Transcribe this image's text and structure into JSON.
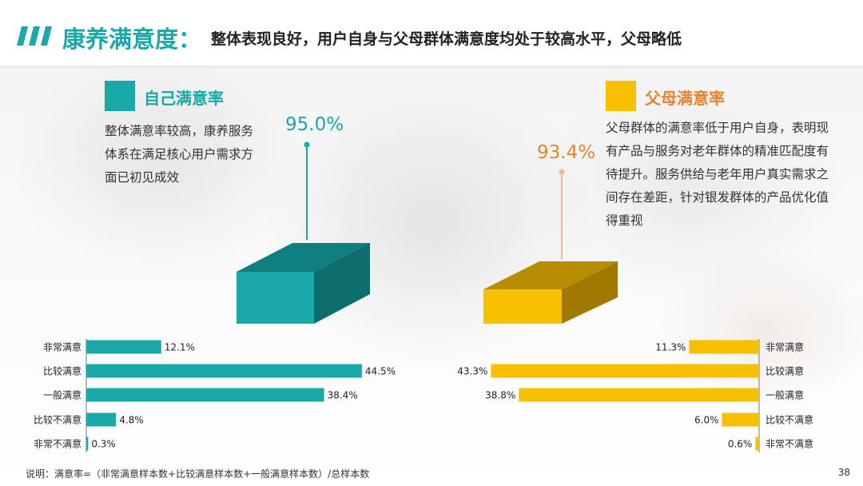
{
  "header": {
    "title": "康养满意度：",
    "subtitle": "整体表现良好，用户自身与父母群体满意度均处于较高水平，父母略低"
  },
  "colors": {
    "teal": "#1aa8a8",
    "teal_dark": "#0e7d7d",
    "yellow": "#f7c000",
    "yellow_dark": "#c59400",
    "orange_text": "#e8832e"
  },
  "left_panel": {
    "legend": "自己满意率",
    "overall_pct": "95.0%",
    "description": [
      "整体满意率较高，康养服务",
      "体系在满足核心用户需求方",
      "面已初见成效"
    ]
  },
  "right_panel": {
    "legend": "父母满意率",
    "overall_pct": "93.4%",
    "description": [
      "父母群体的满意率低于用户自身，表明现",
      "有产品与服务对老年群体的精准匹配度有",
      "待提升。服务供给与老年用户真实需求之",
      "间存在差距，针对银发群体的产品优化值",
      "得重视"
    ]
  },
  "chart_data": [
    {
      "type": "bar",
      "orientation": "horizontal",
      "series": [
        {
          "name": "自己满意率",
          "values": [
            12.1,
            44.5,
            38.4,
            4.8,
            0.3
          ]
        }
      ],
      "categories": [
        "非常满意",
        "比较满意",
        "一般满意",
        "比较不满意",
        "非常不满意"
      ],
      "value_labels": [
        "12.1%",
        "44.5%",
        "38.4%",
        "4.8%",
        "0.3%"
      ],
      "summary_value": 95.0,
      "color": "#1aa8a8"
    },
    {
      "type": "bar",
      "orientation": "horizontal",
      "series": [
        {
          "name": "父母满意率",
          "values": [
            11.3,
            43.3,
            38.8,
            6.0,
            0.6
          ]
        }
      ],
      "categories": [
        "非常满意",
        "比较满意",
        "一般满意",
        "比较不满意",
        "非常不满意"
      ],
      "value_labels": [
        "11.3%",
        "43.3%",
        "38.8%",
        "6.0%",
        "0.6%"
      ],
      "summary_value": 93.4,
      "color": "#f7c000"
    }
  ],
  "footnote": "说明：满意率=（非常满意样本数+比较满意样本数+一般满意样本数）/总样本数",
  "page_number": "38"
}
